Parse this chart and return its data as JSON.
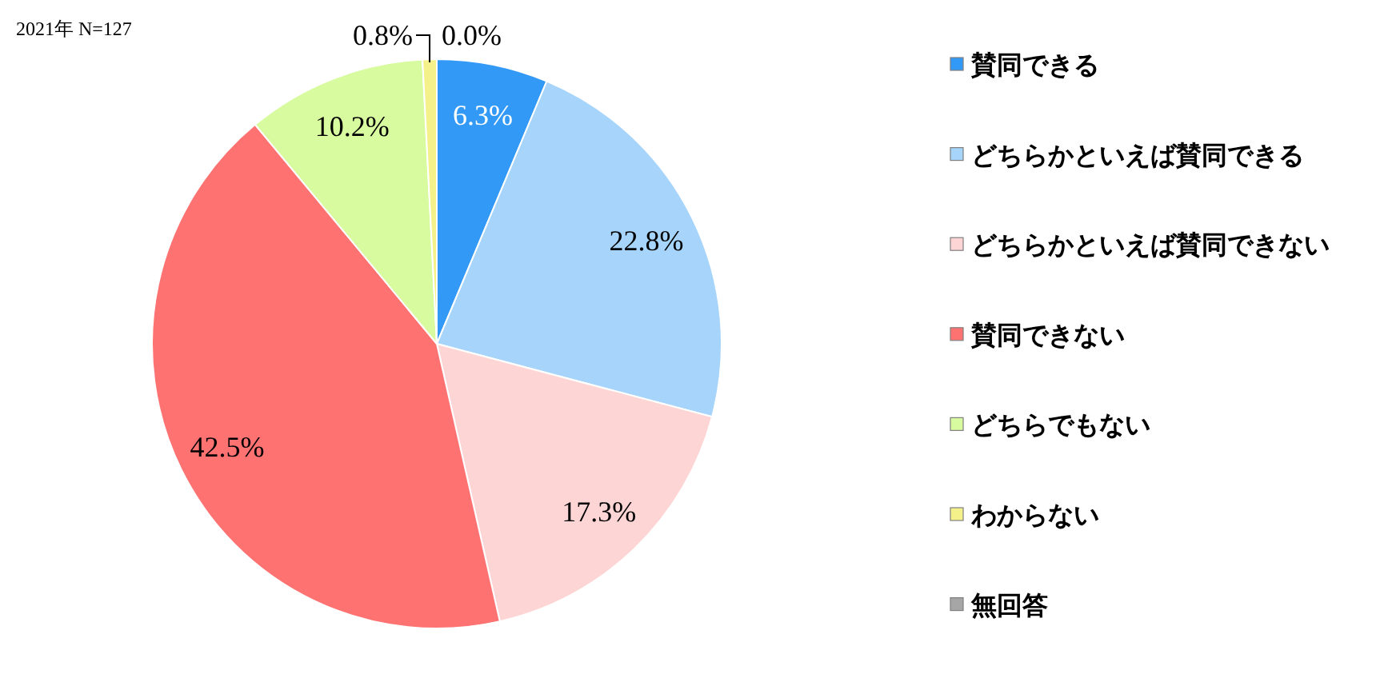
{
  "chart_data": {
    "type": "pie",
    "title": "2021年 N=127",
    "categories": [
      "賛同できる",
      "どちらかといえば賛同できる",
      "どちらかといえば賛同できない",
      "賛同できない",
      "どちらでもない",
      "わからない",
      "無回答"
    ],
    "values": [
      6.3,
      22.8,
      17.3,
      42.5,
      10.2,
      0.8,
      0.0
    ],
    "value_labels": [
      "6.3%",
      "22.8%",
      "17.3%",
      "42.5%",
      "10.2%",
      "0.8%",
      "0.0%"
    ],
    "colors": [
      "#3399f7",
      "#a6d4fa",
      "#fed5d5",
      "#fe7272",
      "#d8fba0",
      "#f4f08a",
      "#a6a6a6"
    ],
    "legend": "right"
  }
}
